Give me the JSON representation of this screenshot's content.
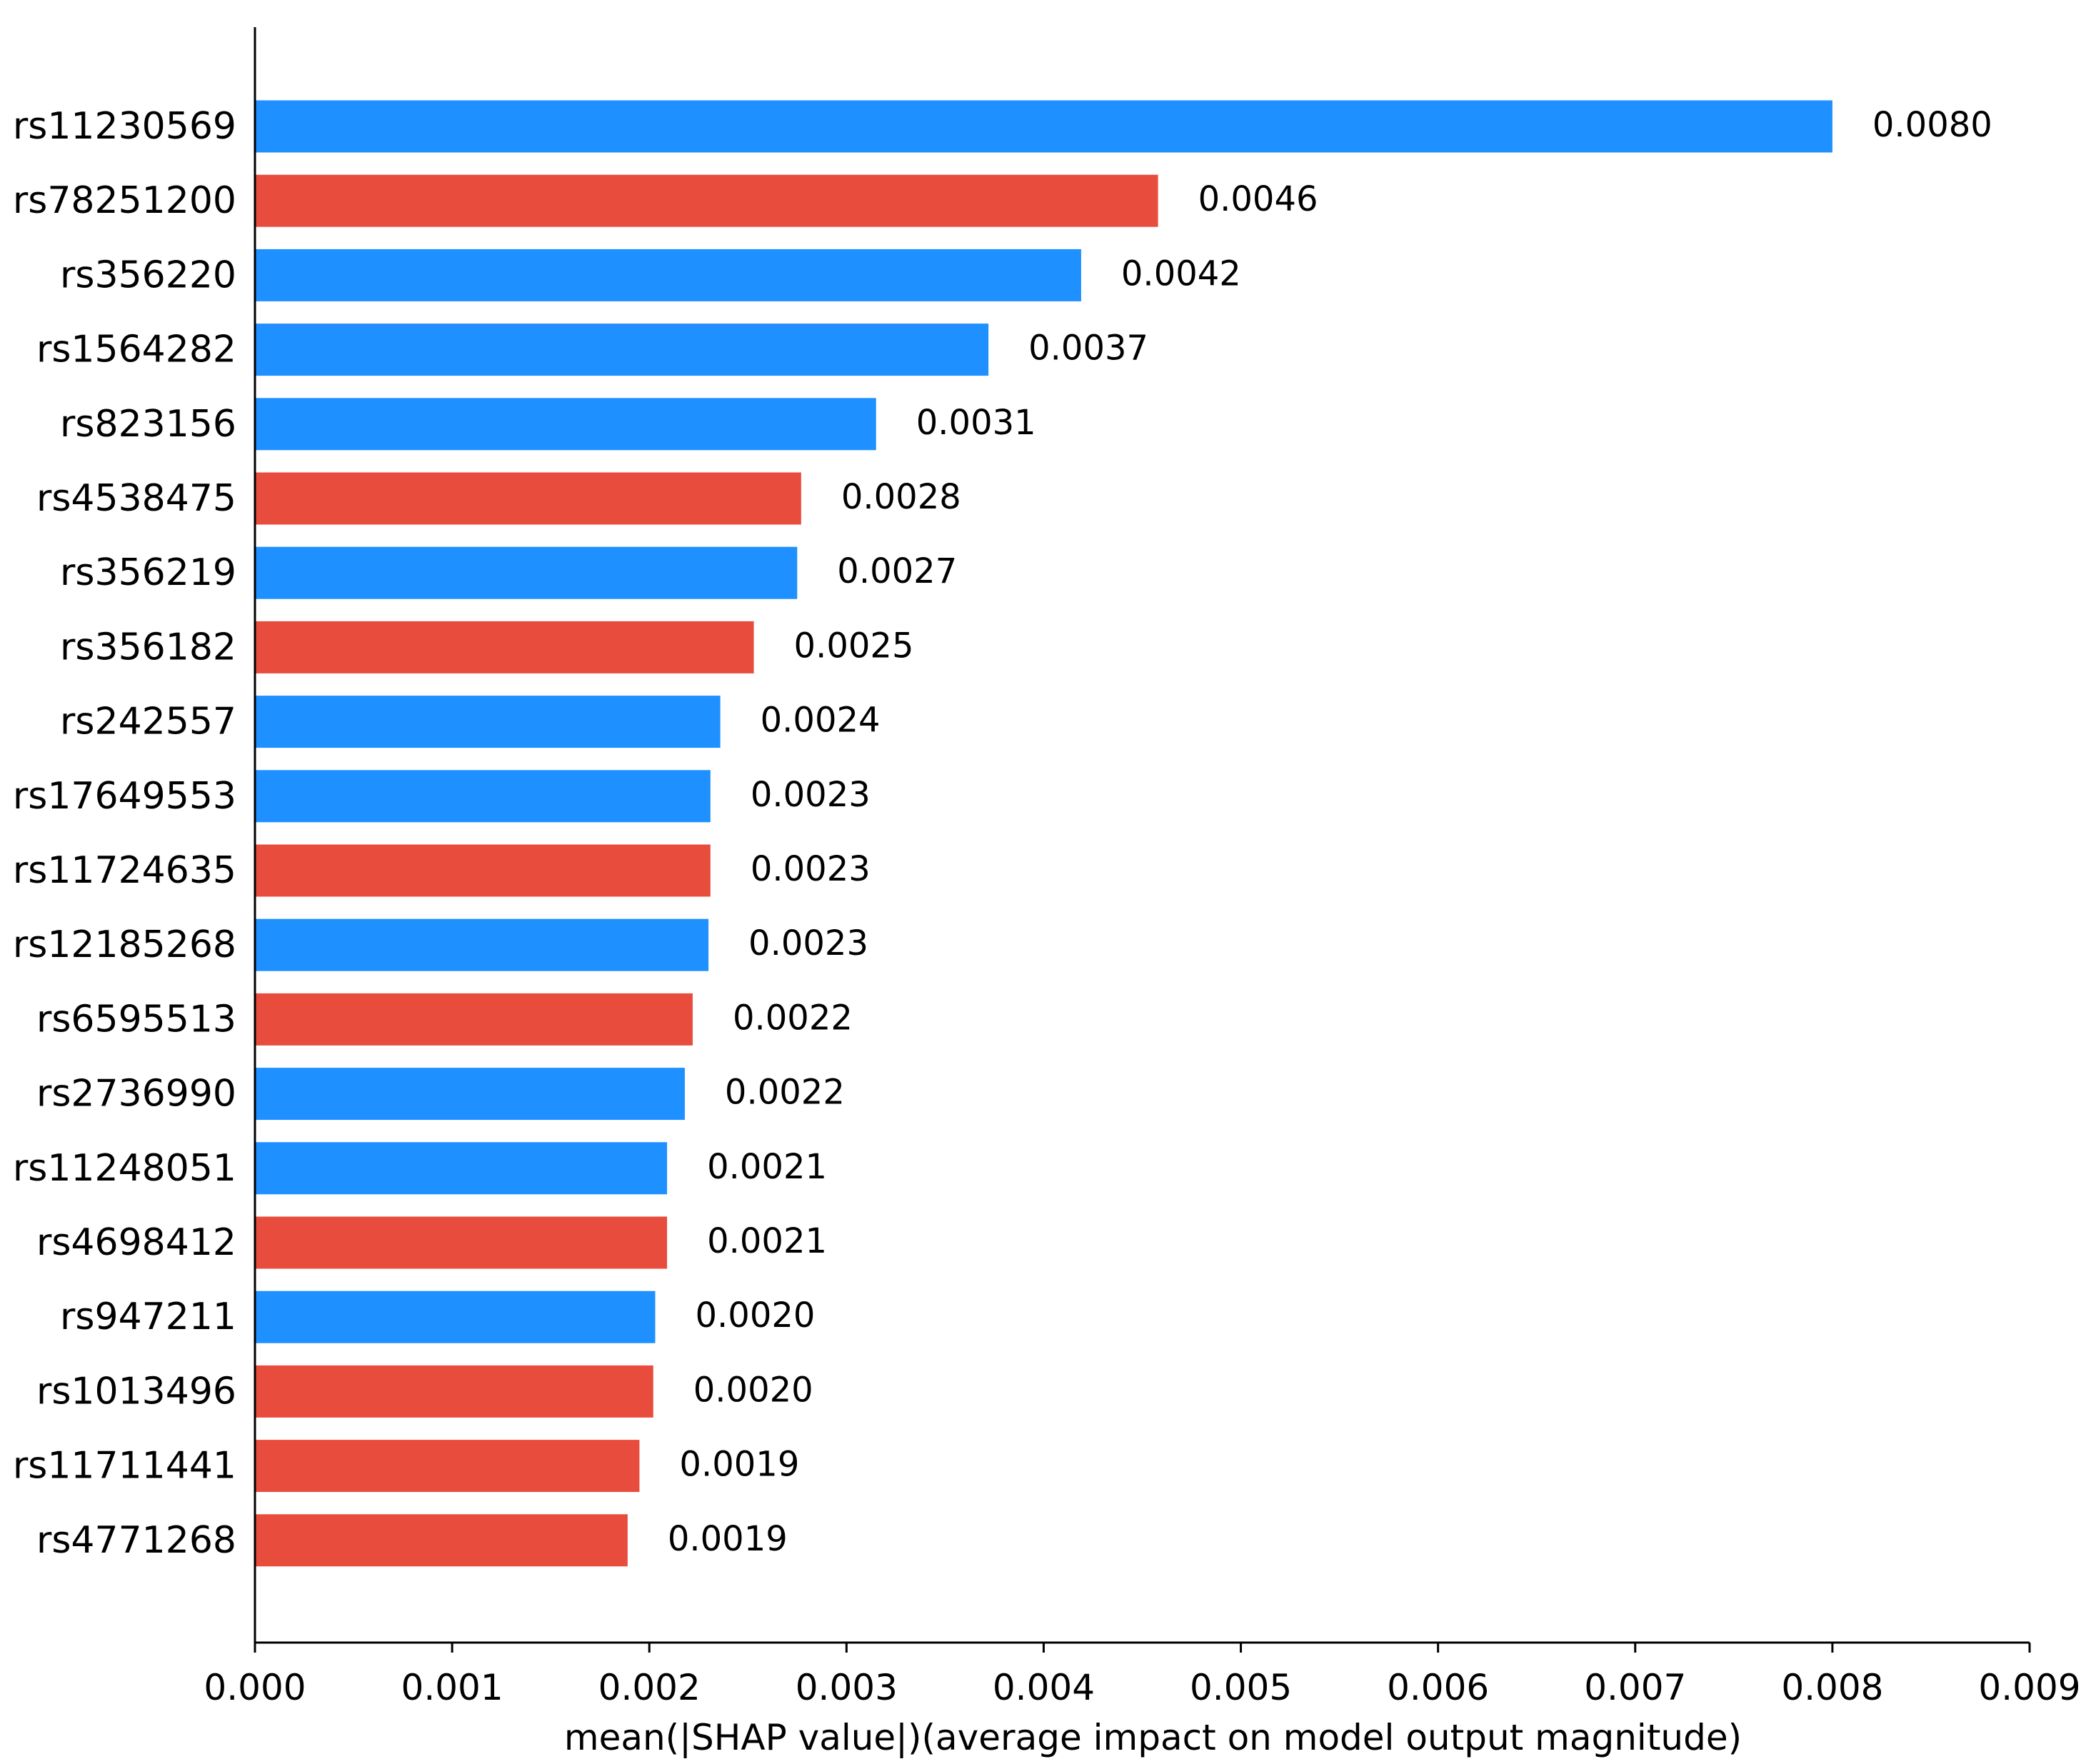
{
  "chart_data": {
    "type": "bar",
    "orientation": "horizontal",
    "xlabel": "mean(|SHAP value|)(average impact on model output magnitude)",
    "ylabel": "",
    "title": "",
    "xlim": [
      0,
      0.009
    ],
    "xticks": [
      "0.000",
      "0.001",
      "0.002",
      "0.003",
      "0.004",
      "0.005",
      "0.006",
      "0.007",
      "0.008",
      "0.009"
    ],
    "grid": false,
    "legend": "none",
    "colors": {
      "blue": "#1e90ff",
      "red": "#e84c3d"
    },
    "bars": [
      {
        "label": "rs11230569",
        "value": 0.008,
        "text": "0.0080",
        "color": "blue"
      },
      {
        "label": "rs78251200",
        "value": 0.00458,
        "text": "0.0046",
        "color": "red"
      },
      {
        "label": "rs356220",
        "value": 0.00419,
        "text": "0.0042",
        "color": "blue"
      },
      {
        "label": "rs1564282",
        "value": 0.00372,
        "text": "0.0037",
        "color": "blue"
      },
      {
        "label": "rs823156",
        "value": 0.00315,
        "text": "0.0031",
        "color": "blue"
      },
      {
        "label": "rs4538475",
        "value": 0.00277,
        "text": "0.0028",
        "color": "red"
      },
      {
        "label": "rs356219",
        "value": 0.00275,
        "text": "0.0027",
        "color": "blue"
      },
      {
        "label": "rs356182",
        "value": 0.00253,
        "text": "0.0025",
        "color": "red"
      },
      {
        "label": "rs242557",
        "value": 0.00236,
        "text": "0.0024",
        "color": "blue"
      },
      {
        "label": "rs17649553",
        "value": 0.00231,
        "text": "0.0023",
        "color": "blue"
      },
      {
        "label": "rs11724635",
        "value": 0.00231,
        "text": "0.0023",
        "color": "red"
      },
      {
        "label": "rs12185268",
        "value": 0.0023,
        "text": "0.0023",
        "color": "blue"
      },
      {
        "label": "rs6595513",
        "value": 0.00222,
        "text": "0.0022",
        "color": "red"
      },
      {
        "label": "rs2736990",
        "value": 0.00218,
        "text": "0.0022",
        "color": "blue"
      },
      {
        "label": "rs11248051",
        "value": 0.00209,
        "text": "0.0021",
        "color": "blue"
      },
      {
        "label": "rs4698412",
        "value": 0.00209,
        "text": "0.0021",
        "color": "red"
      },
      {
        "label": "rs947211",
        "value": 0.00203,
        "text": "0.0020",
        "color": "blue"
      },
      {
        "label": "rs1013496",
        "value": 0.00202,
        "text": "0.0020",
        "color": "red"
      },
      {
        "label": "rs11711441",
        "value": 0.00195,
        "text": "0.0019",
        "color": "red"
      },
      {
        "label": "rs4771268",
        "value": 0.00189,
        "text": "0.0019",
        "color": "red"
      }
    ]
  }
}
